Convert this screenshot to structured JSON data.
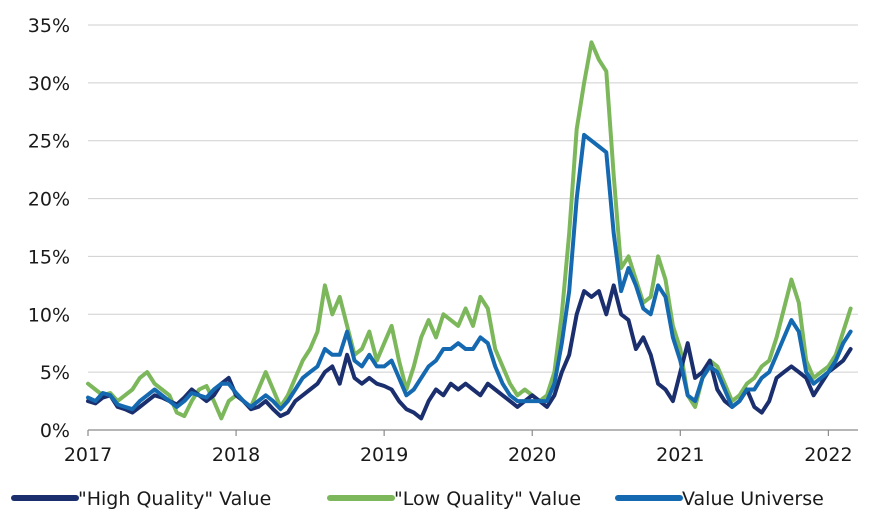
{
  "chart_data": {
    "type": "line",
    "title": "",
    "xlabel": "",
    "ylabel": "",
    "xlim": [
      2017.0,
      2022.2
    ],
    "ylim": [
      0,
      35
    ],
    "grid": "horizontal",
    "legend_position": "bottom",
    "x_ticks": [
      2017,
      2018,
      2019,
      2020,
      2021,
      2022
    ],
    "x_tick_labels": [
      "2017",
      "2018",
      "2019",
      "2020",
      "2021",
      "2022"
    ],
    "y_ticks": [
      0,
      5,
      10,
      15,
      20,
      25,
      30,
      35
    ],
    "y_tick_labels": [
      "0%",
      "5%",
      "10%",
      "15%",
      "20%",
      "25%",
      "30%",
      "35%"
    ],
    "series": [
      {
        "name": "\"Low Quality\" Value",
        "color": "#7cb85b",
        "x": [
          2017.0,
          2017.05,
          2017.1,
          2017.15,
          2017.2,
          2017.25,
          2017.3,
          2017.35,
          2017.4,
          2017.45,
          2017.5,
          2017.55,
          2017.6,
          2017.65,
          2017.7,
          2017.75,
          2017.8,
          2017.85,
          2017.9,
          2017.95,
          2018.0,
          2018.05,
          2018.1,
          2018.15,
          2018.2,
          2018.25,
          2018.3,
          2018.35,
          2018.4,
          2018.45,
          2018.5,
          2018.55,
          2018.6,
          2018.65,
          2018.7,
          2018.75,
          2018.8,
          2018.85,
          2018.9,
          2018.95,
          2019.0,
          2019.05,
          2019.1,
          2019.15,
          2019.2,
          2019.25,
          2019.3,
          2019.35,
          2019.4,
          2019.45,
          2019.5,
          2019.55,
          2019.6,
          2019.65,
          2019.7,
          2019.75,
          2019.8,
          2019.85,
          2019.9,
          2019.95,
          2020.0,
          2020.05,
          2020.1,
          2020.15,
          2020.2,
          2020.25,
          2020.3,
          2020.35,
          2020.4,
          2020.45,
          2020.5,
          2020.55,
          2020.6,
          2020.65,
          2020.7,
          2020.75,
          2020.8,
          2020.85,
          2020.9,
          2020.95,
          2021.0,
          2021.05,
          2021.1,
          2021.15,
          2021.2,
          2021.25,
          2021.3,
          2021.35,
          2021.4,
          2021.45,
          2021.5,
          2021.55,
          2021.6,
          2021.65,
          2021.7,
          2021.75,
          2021.8,
          2021.85,
          2021.9,
          2021.95,
          2022.0,
          2022.05,
          2022.1,
          2022.15
        ],
        "values": [
          4.0,
          3.5,
          3.0,
          3.2,
          2.5,
          3.0,
          3.5,
          4.5,
          5.0,
          4.0,
          3.5,
          3.0,
          1.5,
          1.2,
          2.5,
          3.5,
          3.8,
          2.5,
          1.0,
          2.5,
          3.0,
          2.5,
          2.0,
          3.5,
          5.0,
          3.5,
          2.0,
          3.0,
          4.5,
          6.0,
          7.0,
          8.5,
          12.5,
          10.0,
          11.5,
          9.0,
          6.5,
          7.0,
          8.5,
          6.0,
          7.5,
          9.0,
          6.0,
          3.5,
          5.5,
          8.0,
          9.5,
          8.0,
          10.0,
          9.5,
          9.0,
          10.5,
          9.0,
          11.5,
          10.5,
          7.0,
          5.5,
          4.0,
          3.0,
          3.5,
          3.0,
          2.5,
          3.0,
          5.0,
          10.0,
          17.0,
          26.0,
          30.0,
          33.5,
          32.0,
          31.0,
          22.0,
          14.0,
          15.0,
          13.0,
          11.0,
          11.5,
          15.0,
          13.0,
          9.0,
          7.0,
          3.0,
          2.0,
          4.5,
          6.0,
          5.5,
          4.0,
          2.5,
          3.0,
          4.0,
          4.5,
          5.5,
          6.0,
          8.0,
          10.5,
          13.0,
          11.0,
          6.0,
          4.5,
          5.0,
          5.5,
          6.5,
          8.5,
          10.5
        ]
      },
      {
        "name": "\"High Quality\" Value",
        "color": "#1b2f6e",
        "x": [
          2017.0,
          2017.05,
          2017.1,
          2017.15,
          2017.2,
          2017.25,
          2017.3,
          2017.35,
          2017.4,
          2017.45,
          2017.5,
          2017.55,
          2017.6,
          2017.65,
          2017.7,
          2017.75,
          2017.8,
          2017.85,
          2017.9,
          2017.95,
          2018.0,
          2018.05,
          2018.1,
          2018.15,
          2018.2,
          2018.25,
          2018.3,
          2018.35,
          2018.4,
          2018.45,
          2018.5,
          2018.55,
          2018.6,
          2018.65,
          2018.7,
          2018.75,
          2018.8,
          2018.85,
          2018.9,
          2018.95,
          2019.0,
          2019.05,
          2019.1,
          2019.15,
          2019.2,
          2019.25,
          2019.3,
          2019.35,
          2019.4,
          2019.45,
          2019.5,
          2019.55,
          2019.6,
          2019.65,
          2019.7,
          2019.75,
          2019.8,
          2019.85,
          2019.9,
          2019.95,
          2020.0,
          2020.05,
          2020.1,
          2020.15,
          2020.2,
          2020.25,
          2020.3,
          2020.35,
          2020.4,
          2020.45,
          2020.5,
          2020.55,
          2020.6,
          2020.65,
          2020.7,
          2020.75,
          2020.8,
          2020.85,
          2020.9,
          2020.95,
          2021.0,
          2021.05,
          2021.1,
          2021.15,
          2021.2,
          2021.25,
          2021.3,
          2021.35,
          2021.4,
          2021.45,
          2021.5,
          2021.55,
          2021.6,
          2021.65,
          2021.7,
          2021.75,
          2021.8,
          2021.85,
          2021.9,
          2021.95,
          2022.0,
          2022.05,
          2022.1,
          2022.15
        ],
        "values": [
          2.5,
          2.3,
          2.8,
          3.0,
          2.0,
          1.8,
          1.5,
          2.0,
          2.5,
          3.0,
          2.8,
          2.5,
          2.2,
          2.8,
          3.5,
          3.0,
          2.5,
          3.0,
          4.0,
          4.5,
          3.0,
          2.5,
          1.8,
          2.0,
          2.5,
          1.8,
          1.2,
          1.5,
          2.5,
          3.0,
          3.5,
          4.0,
          5.0,
          5.5,
          4.0,
          6.5,
          4.5,
          4.0,
          4.5,
          4.0,
          3.8,
          3.5,
          2.5,
          1.8,
          1.5,
          1.0,
          2.5,
          3.5,
          3.0,
          4.0,
          3.5,
          4.0,
          3.5,
          3.0,
          4.0,
          3.5,
          3.0,
          2.5,
          2.0,
          2.5,
          3.0,
          2.5,
          2.0,
          3.0,
          5.0,
          6.5,
          10.0,
          12.0,
          11.5,
          12.0,
          10.0,
          12.5,
          10.0,
          9.5,
          7.0,
          8.0,
          6.5,
          4.0,
          3.5,
          2.5,
          5.0,
          7.5,
          4.5,
          5.0,
          6.0,
          3.5,
          2.5,
          2.0,
          2.5,
          3.5,
          2.0,
          1.5,
          2.5,
          4.5,
          5.0,
          5.5,
          5.0,
          4.5,
          3.0,
          4.0,
          5.0,
          5.5,
          6.0,
          7.0
        ]
      },
      {
        "name": "Value Universe",
        "color": "#1569b0",
        "x": [
          2017.0,
          2017.05,
          2017.1,
          2017.15,
          2017.2,
          2017.25,
          2017.3,
          2017.35,
          2017.4,
          2017.45,
          2017.5,
          2017.55,
          2017.6,
          2017.65,
          2017.7,
          2017.75,
          2017.8,
          2017.85,
          2017.9,
          2017.95,
          2018.0,
          2018.05,
          2018.1,
          2018.15,
          2018.2,
          2018.25,
          2018.3,
          2018.35,
          2018.4,
          2018.45,
          2018.5,
          2018.55,
          2018.6,
          2018.65,
          2018.7,
          2018.75,
          2018.8,
          2018.85,
          2018.9,
          2018.95,
          2019.0,
          2019.05,
          2019.1,
          2019.15,
          2019.2,
          2019.25,
          2019.3,
          2019.35,
          2019.4,
          2019.45,
          2019.5,
          2019.55,
          2019.6,
          2019.65,
          2019.7,
          2019.75,
          2019.8,
          2019.85,
          2019.9,
          2019.95,
          2020.0,
          2020.05,
          2020.1,
          2020.15,
          2020.2,
          2020.25,
          2020.3,
          2020.35,
          2020.4,
          2020.45,
          2020.5,
          2020.55,
          2020.6,
          2020.65,
          2020.7,
          2020.75,
          2020.8,
          2020.85,
          2020.9,
          2020.95,
          2021.0,
          2021.05,
          2021.1,
          2021.15,
          2021.2,
          2021.25,
          2021.3,
          2021.35,
          2021.4,
          2021.45,
          2021.5,
          2021.55,
          2021.6,
          2021.65,
          2021.7,
          2021.75,
          2021.8,
          2021.85,
          2021.9,
          2021.95,
          2022.0,
          2022.05,
          2022.1,
          2022.15
        ],
        "values": [
          2.8,
          2.5,
          3.2,
          3.0,
          2.2,
          2.0,
          1.8,
          2.5,
          3.0,
          3.5,
          3.0,
          2.5,
          2.0,
          2.5,
          3.2,
          3.0,
          2.8,
          3.5,
          4.0,
          4.0,
          3.2,
          2.5,
          2.0,
          2.5,
          3.0,
          2.5,
          1.8,
          2.5,
          3.5,
          4.5,
          5.0,
          5.5,
          7.0,
          6.5,
          6.5,
          8.5,
          6.0,
          5.5,
          6.5,
          5.5,
          5.5,
          6.0,
          4.5,
          3.0,
          3.5,
          4.5,
          5.5,
          6.0,
          7.0,
          7.0,
          7.5,
          7.0,
          7.0,
          8.0,
          7.5,
          5.5,
          4.0,
          3.0,
          2.5,
          2.5,
          2.5,
          2.5,
          2.5,
          4.0,
          7.5,
          12.0,
          20.0,
          25.5,
          25.0,
          24.5,
          24.0,
          17.0,
          12.0,
          14.0,
          12.5,
          10.5,
          10.0,
          12.5,
          11.5,
          8.0,
          6.0,
          3.0,
          2.5,
          4.5,
          5.5,
          5.0,
          3.5,
          2.0,
          2.5,
          3.5,
          3.5,
          4.5,
          5.0,
          6.5,
          8.0,
          9.5,
          8.5,
          5.0,
          4.0,
          4.5,
          5.0,
          6.0,
          7.5,
          8.5
        ]
      }
    ],
    "legend": [
      {
        "label": "\"High Quality\" Value",
        "color": "#1b2f6e"
      },
      {
        "label": "\"Low Quality\" Value",
        "color": "#7cb85b"
      },
      {
        "label": "Value Universe",
        "color": "#1569b0"
      }
    ]
  }
}
